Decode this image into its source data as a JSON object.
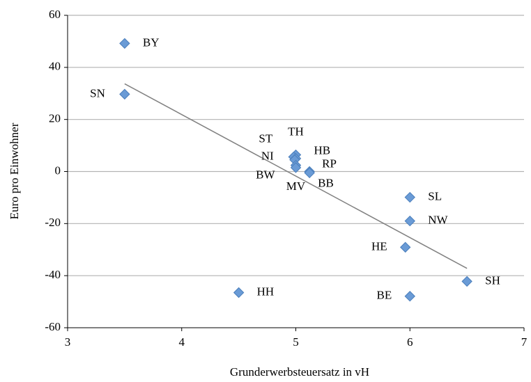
{
  "chart_data": {
    "type": "scatter",
    "x_label": "Grunderwerbsteuersatz in vH",
    "y_label": "Euro pro Einwohner",
    "xlim": [
      3,
      7
    ],
    "xticks": [
      3,
      4,
      5,
      6,
      7
    ],
    "ylim": [
      -60,
      60
    ],
    "yticks": [
      -60,
      -40,
      -20,
      0,
      20,
      40,
      60
    ],
    "grid": true,
    "color": "#6a9bd6",
    "points": [
      {
        "label": "BY",
        "x": 3.5,
        "y": 49.2
      },
      {
        "label": "SN",
        "x": 3.5,
        "y": 29.7
      },
      {
        "label": "TH",
        "x": 5.0,
        "y": 6.4
      },
      {
        "label": "ST",
        "x": 4.98,
        "y": 5.6
      },
      {
        "label": "HB",
        "x": 5.0,
        "y": 5.0
      },
      {
        "label": "NI",
        "x": 4.99,
        "y": 4.5
      },
      {
        "label": "BW",
        "x": 5.0,
        "y": 2.4
      },
      {
        "label": "MV",
        "x": 5.0,
        "y": 1.5
      },
      {
        "label": "RP",
        "x": 5.12,
        "y": 0
      },
      {
        "label": "BB",
        "x": 5.12,
        "y": -0.5
      },
      {
        "label": "SL",
        "x": 6.0,
        "y": -9.9
      },
      {
        "label": "NW",
        "x": 6.0,
        "y": -19
      },
      {
        "label": "HE",
        "x": 5.96,
        "y": -29.1
      },
      {
        "label": "SH",
        "x": 6.5,
        "y": -42.2
      },
      {
        "label": "BE",
        "x": 6.0,
        "y": -47.9
      },
      {
        "label": "HH",
        "x": 4.5,
        "y": -46.5
      }
    ],
    "trendline": {
      "x": [
        3.5,
        6.5
      ],
      "y": [
        33.7,
        -37.2
      ],
      "color": "#808080"
    }
  }
}
